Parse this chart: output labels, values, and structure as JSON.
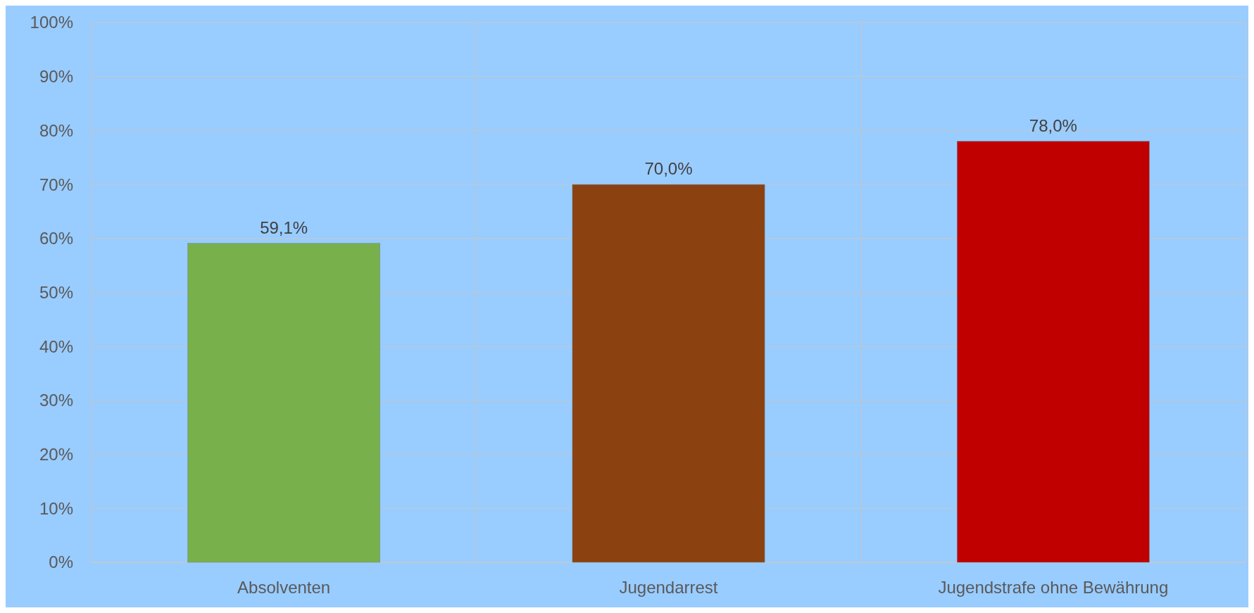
{
  "chart_data": {
    "type": "bar",
    "categories": [
      "Absolventen",
      "Jugendarrest",
      "Jugendstrafe ohne Bewährung"
    ],
    "values": [
      59.1,
      70.0,
      78.0
    ],
    "colors": [
      "#78b04c",
      "#8b4210",
      "#c00000"
    ],
    "value_labels": [
      "59,1%",
      "70,0%",
      "78,0%"
    ],
    "ylim": [
      0,
      100
    ],
    "yticks": [
      {
        "value": 0,
        "label": "0%"
      },
      {
        "value": 10,
        "label": "10%"
      },
      {
        "value": 20,
        "label": "20%"
      },
      {
        "value": 30,
        "label": "30%"
      },
      {
        "value": 40,
        "label": "40%"
      },
      {
        "value": 50,
        "label": "50%"
      },
      {
        "value": 60,
        "label": "60%"
      },
      {
        "value": 70,
        "label": "70%"
      },
      {
        "value": 80,
        "label": "80%"
      },
      {
        "value": 90,
        "label": "90%"
      },
      {
        "value": 100,
        "label": "100%"
      }
    ],
    "grid": true
  }
}
